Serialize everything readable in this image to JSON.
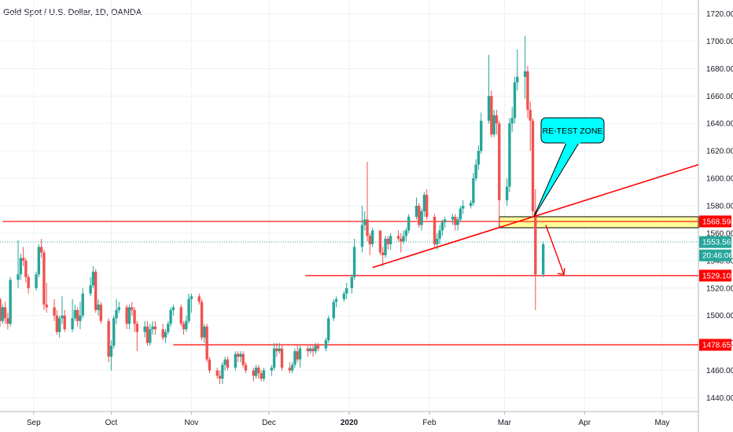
{
  "header": {
    "title": "Gold Spot / U.S. Dollar, 1D, OANDA"
  },
  "chart_data": {
    "type": "candlestick",
    "title": "Gold Spot / U.S. Dollar, 1D, OANDA",
    "xlabel": "",
    "ylabel": "",
    "ylim": [
      1430,
      1730
    ],
    "grid": true,
    "colors": {
      "up": "#26a69a",
      "down": "#ef5350",
      "level": "#ff0000",
      "zone_fill": "#ffff99",
      "callout_fill": "#00ffff",
      "current_price": "#26a69a"
    },
    "y_ticks": [
      "1440.000",
      "1460.000",
      "1480.000",
      "1500.000",
      "1520.000",
      "1540.000",
      "1560.000",
      "1580.000",
      "1600.000",
      "1620.000",
      "1640.000",
      "1660.000",
      "1680.000",
      "1700.000",
      "1720.000"
    ],
    "y_tick_values": [
      1440,
      1460,
      1480,
      1500,
      1520,
      1540,
      1560,
      1580,
      1600,
      1620,
      1640,
      1660,
      1680,
      1700,
      1720
    ],
    "x_ticks": [
      "Sep",
      "Oct",
      "Nov",
      "Dec",
      "2020",
      "Feb",
      "Mar",
      "Apr",
      "May"
    ],
    "x_tick_dates": [
      "2019-09-01",
      "2019-10-01",
      "2019-11-01",
      "2019-12-01",
      "2020-01-01",
      "2020-02-01",
      "2020-03-01",
      "2020-04-01",
      "2020-05-01"
    ],
    "date_range": [
      "2019-08-19",
      "2020-05-15"
    ],
    "candles": [
      [
        "2019-08-19",
        1512,
        1513,
        1492,
        1496
      ],
      [
        "2019-08-20",
        1496,
        1508,
        1494,
        1506
      ],
      [
        "2019-08-21",
        1506,
        1510,
        1494,
        1498
      ],
      [
        "2019-08-22",
        1498,
        1502,
        1490,
        1494
      ],
      [
        "2019-08-23",
        1494,
        1528,
        1492,
        1526
      ],
      [
        "2019-08-26",
        1526,
        1555,
        1520,
        1530
      ],
      [
        "2019-08-27",
        1530,
        1545,
        1526,
        1542
      ],
      [
        "2019-08-28",
        1542,
        1550,
        1536,
        1540
      ],
      [
        "2019-08-29",
        1540,
        1542,
        1524,
        1528
      ],
      [
        "2019-08-30",
        1528,
        1530,
        1516,
        1520
      ],
      [
        "2019-09-02",
        1520,
        1532,
        1518,
        1530
      ],
      [
        "2019-09-03",
        1530,
        1552,
        1528,
        1550
      ],
      [
        "2019-09-04",
        1550,
        1556,
        1542,
        1546
      ],
      [
        "2019-09-05",
        1546,
        1548,
        1504,
        1508
      ],
      [
        "2019-09-06",
        1508,
        1524,
        1502,
        1506
      ],
      [
        "2019-09-09",
        1506,
        1512,
        1496,
        1500
      ],
      [
        "2019-09-10",
        1500,
        1504,
        1486,
        1488
      ],
      [
        "2019-09-11",
        1488,
        1500,
        1484,
        1498
      ],
      [
        "2019-09-12",
        1498,
        1514,
        1494,
        1500
      ],
      [
        "2019-09-13",
        1500,
        1504,
        1488,
        1490
      ],
      [
        "2019-09-16",
        1490,
        1512,
        1488,
        1498
      ],
      [
        "2019-09-17",
        1498,
        1508,
        1496,
        1504
      ],
      [
        "2019-09-18",
        1504,
        1506,
        1492,
        1496
      ],
      [
        "2019-09-19",
        1496,
        1510,
        1490,
        1500
      ],
      [
        "2019-09-20",
        1500,
        1520,
        1498,
        1516
      ],
      [
        "2019-09-23",
        1516,
        1528,
        1514,
        1522
      ],
      [
        "2019-09-24",
        1522,
        1536,
        1520,
        1532
      ],
      [
        "2019-09-25",
        1532,
        1534,
        1502,
        1504
      ],
      [
        "2019-09-26",
        1504,
        1512,
        1500,
        1508
      ],
      [
        "2019-09-27",
        1508,
        1510,
        1494,
        1496
      ],
      [
        "2019-09-30",
        1496,
        1498,
        1466,
        1470
      ],
      [
        "2019-10-01",
        1470,
        1482,
        1460,
        1478
      ],
      [
        "2019-10-02",
        1478,
        1500,
        1476,
        1498
      ],
      [
        "2019-10-03",
        1498,
        1512,
        1494,
        1504
      ],
      [
        "2019-10-04",
        1504,
        1510,
        1502,
        1506
      ],
      [
        "2019-10-07",
        1506,
        1508,
        1490,
        1494
      ],
      [
        "2019-10-08",
        1494,
        1508,
        1490,
        1506
      ],
      [
        "2019-10-09",
        1506,
        1510,
        1500,
        1504
      ],
      [
        "2019-10-10",
        1504,
        1506,
        1488,
        1494
      ],
      [
        "2019-10-11",
        1494,
        1496,
        1474,
        1488
      ],
      [
        "2019-10-14",
        1488,
        1496,
        1484,
        1492
      ],
      [
        "2019-10-15",
        1492,
        1496,
        1478,
        1480
      ],
      [
        "2019-10-16",
        1480,
        1494,
        1478,
        1490
      ],
      [
        "2019-10-17",
        1490,
        1496,
        1486,
        1492
      ],
      [
        "2019-10-18",
        1492,
        1496,
        1486,
        1490
      ],
      [
        "2019-10-21",
        1490,
        1494,
        1482,
        1484
      ],
      [
        "2019-10-22",
        1484,
        1490,
        1480,
        1488
      ],
      [
        "2019-10-23",
        1488,
        1496,
        1486,
        1494
      ],
      [
        "2019-10-24",
        1494,
        1506,
        1492,
        1504
      ],
      [
        "2019-10-25",
        1504,
        1508,
        1500,
        1506
      ],
      [
        "2019-10-28",
        1506,
        1508,
        1492,
        1494
      ],
      [
        "2019-10-29",
        1494,
        1496,
        1486,
        1490
      ],
      [
        "2019-10-30",
        1490,
        1500,
        1488,
        1496
      ],
      [
        "2019-10-31",
        1496,
        1516,
        1494,
        1512
      ],
      [
        "2019-11-01",
        1512,
        1516,
        1502,
        1514
      ],
      [
        "2019-11-04",
        1514,
        1516,
        1508,
        1510
      ],
      [
        "2019-11-05",
        1510,
        1512,
        1482,
        1484
      ],
      [
        "2019-11-06",
        1484,
        1494,
        1480,
        1492
      ],
      [
        "2019-11-07",
        1492,
        1494,
        1466,
        1468
      ],
      [
        "2019-11-08",
        1468,
        1470,
        1458,
        1460
      ],
      [
        "2019-11-11",
        1460,
        1462,
        1454,
        1456
      ],
      [
        "2019-11-12",
        1456,
        1460,
        1450,
        1454
      ],
      [
        "2019-11-13",
        1454,
        1466,
        1450,
        1464
      ],
      [
        "2019-11-14",
        1464,
        1470,
        1460,
        1468
      ],
      [
        "2019-11-15",
        1468,
        1470,
        1460,
        1462
      ],
      [
        "2019-11-18",
        1462,
        1474,
        1460,
        1472
      ],
      [
        "2019-11-19",
        1472,
        1474,
        1466,
        1470
      ],
      [
        "2019-11-20",
        1470,
        1474,
        1466,
        1472
      ],
      [
        "2019-11-21",
        1472,
        1474,
        1462,
        1464
      ],
      [
        "2019-11-22",
        1464,
        1466,
        1458,
        1460
      ],
      [
        "2019-11-25",
        1460,
        1462,
        1452,
        1456
      ],
      [
        "2019-11-26",
        1456,
        1464,
        1454,
        1462
      ],
      [
        "2019-11-27",
        1462,
        1464,
        1454,
        1458
      ],
      [
        "2019-11-28",
        1458,
        1460,
        1452,
        1454
      ],
      [
        "2019-11-29",
        1454,
        1462,
        1452,
        1460
      ],
      [
        "2019-12-02",
        1460,
        1464,
        1456,
        1462
      ],
      [
        "2019-12-03",
        1462,
        1480,
        1460,
        1476
      ],
      [
        "2019-12-04",
        1476,
        1480,
        1470,
        1474
      ],
      [
        "2019-12-05",
        1474,
        1480,
        1472,
        1476
      ],
      [
        "2019-12-06",
        1476,
        1478,
        1460,
        1462
      ],
      [
        "2019-12-09",
        1462,
        1466,
        1458,
        1460
      ],
      [
        "2019-12-10",
        1460,
        1466,
        1458,
        1464
      ],
      [
        "2019-12-11",
        1464,
        1476,
        1462,
        1474
      ],
      [
        "2019-12-12",
        1474,
        1478,
        1466,
        1468
      ],
      [
        "2019-12-13",
        1468,
        1478,
        1462,
        1476
      ],
      [
        "2019-12-16",
        1476,
        1478,
        1470,
        1474
      ],
      [
        "2019-12-17",
        1474,
        1478,
        1472,
        1476
      ],
      [
        "2019-12-18",
        1476,
        1478,
        1470,
        1474
      ],
      [
        "2019-12-19",
        1474,
        1480,
        1472,
        1478
      ],
      [
        "2019-12-20",
        1478,
        1480,
        1474,
        1476
      ],
      [
        "2019-12-23",
        1476,
        1484,
        1474,
        1482
      ],
      [
        "2019-12-24",
        1482,
        1500,
        1480,
        1498
      ],
      [
        "2019-12-26",
        1498,
        1512,
        1496,
        1510
      ],
      [
        "2019-12-27",
        1510,
        1514,
        1506,
        1512
      ],
      [
        "2019-12-30",
        1512,
        1518,
        1510,
        1516
      ],
      [
        "2019-12-31",
        1516,
        1524,
        1512,
        1520
      ],
      [
        "2020-01-02",
        1520,
        1530,
        1516,
        1528
      ],
      [
        "2020-01-03",
        1528,
        1556,
        1526,
        1550
      ],
      [
        "2020-01-06",
        1550,
        1580,
        1546,
        1566
      ],
      [
        "2020-01-07",
        1566,
        1576,
        1562,
        1570
      ],
      [
        "2020-01-08",
        1570,
        1612,
        1554,
        1558
      ],
      [
        "2020-01-09",
        1558,
        1560,
        1544,
        1552
      ],
      [
        "2020-01-10",
        1552,
        1564,
        1550,
        1562
      ],
      [
        "2020-01-13",
        1562,
        1562,
        1544,
        1546
      ],
      [
        "2020-01-14",
        1546,
        1550,
        1536,
        1544
      ],
      [
        "2020-01-15",
        1544,
        1558,
        1542,
        1556
      ],
      [
        "2020-01-16",
        1556,
        1558,
        1548,
        1552
      ],
      [
        "2020-01-17",
        1552,
        1560,
        1548,
        1558
      ],
      [
        "2020-01-20",
        1558,
        1562,
        1554,
        1556
      ],
      [
        "2020-01-21",
        1556,
        1560,
        1546,
        1554
      ],
      [
        "2020-01-22",
        1554,
        1562,
        1552,
        1558
      ],
      [
        "2020-01-23",
        1558,
        1564,
        1554,
        1562
      ],
      [
        "2020-01-24",
        1562,
        1574,
        1560,
        1572
      ],
      [
        "2020-01-27",
        1572,
        1586,
        1570,
        1580
      ],
      [
        "2020-01-28",
        1580,
        1582,
        1564,
        1566
      ],
      [
        "2020-01-29",
        1566,
        1578,
        1562,
        1576
      ],
      [
        "2020-01-30",
        1576,
        1590,
        1572,
        1588
      ],
      [
        "2020-01-31",
        1588,
        1592,
        1570,
        1572
      ],
      [
        "2020-02-03",
        1572,
        1574,
        1550,
        1552
      ],
      [
        "2020-02-04",
        1552,
        1560,
        1548,
        1556
      ],
      [
        "2020-02-05",
        1556,
        1566,
        1552,
        1562
      ],
      [
        "2020-02-06",
        1562,
        1570,
        1558,
        1568
      ],
      [
        "2020-02-07",
        1568,
        1572,
        1564,
        1570
      ],
      [
        "2020-02-10",
        1570,
        1574,
        1566,
        1572
      ],
      [
        "2020-02-11",
        1572,
        1574,
        1562,
        1566
      ],
      [
        "2020-02-12",
        1566,
        1572,
        1562,
        1570
      ],
      [
        "2020-02-13",
        1570,
        1580,
        1568,
        1578
      ],
      [
        "2020-02-14",
        1578,
        1584,
        1574,
        1580
      ],
      [
        "2020-02-17",
        1580,
        1584,
        1578,
        1582
      ],
      [
        "2020-02-18",
        1582,
        1604,
        1580,
        1600
      ],
      [
        "2020-02-19",
        1600,
        1614,
        1598,
        1610
      ],
      [
        "2020-02-20",
        1610,
        1624,
        1606,
        1620
      ],
      [
        "2020-02-21",
        1620,
        1648,
        1618,
        1642
      ],
      [
        "2020-02-24",
        1642,
        1690,
        1640,
        1660
      ],
      [
        "2020-02-25",
        1660,
        1664,
        1630,
        1632
      ],
      [
        "2020-02-26",
        1632,
        1650,
        1630,
        1646
      ],
      [
        "2020-02-27",
        1646,
        1650,
        1632,
        1640
      ],
      [
        "2020-02-28",
        1640,
        1642,
        1566,
        1584
      ],
      [
        "2020-03-02",
        1584,
        1600,
        1580,
        1594
      ],
      [
        "2020-03-03",
        1594,
        1644,
        1590,
        1640
      ],
      [
        "2020-03-04",
        1640,
        1652,
        1634,
        1644
      ],
      [
        "2020-03-05",
        1644,
        1674,
        1640,
        1670
      ],
      [
        "2020-03-06",
        1670,
        1694,
        1664,
        1674
      ],
      [
        "2020-03-09",
        1674,
        1704,
        1658,
        1678
      ],
      [
        "2020-03-10",
        1678,
        1682,
        1644,
        1650
      ],
      [
        "2020-03-11",
        1650,
        1656,
        1620,
        1642
      ],
      [
        "2020-03-12",
        1642,
        1644,
        1572,
        1576
      ],
      [
        "2020-03-13",
        1576,
        1592,
        1504,
        1530
      ],
      [
        "2020-03-16",
        1530,
        1554,
        1528,
        1552
      ]
    ],
    "levels": [
      {
        "price": 1568.594,
        "label": "1568.594",
        "start": "2019-08-20"
      },
      {
        "price": 1529.108,
        "label": "1529.108",
        "start": "2019-12-15"
      },
      {
        "price": 1478.655,
        "label": "1478.655",
        "start": "2019-10-25"
      }
    ],
    "trendline": {
      "points": [
        [
          "2020-01-10",
          1535
        ],
        [
          "2020-05-15",
          1610
        ]
      ]
    },
    "zone": {
      "label": "RE-TEST ZONE",
      "start": "2020-02-28",
      "end": "2020-05-15",
      "top": 1572,
      "bottom": 1564
    },
    "current_price": {
      "label": "1553.561",
      "value": 1553.561,
      "countdown": "20:46:06"
    },
    "arrow": {
      "from": [
        "2020-03-17",
        1566
      ],
      "to": [
        "2020-03-24",
        1530
      ]
    }
  }
}
